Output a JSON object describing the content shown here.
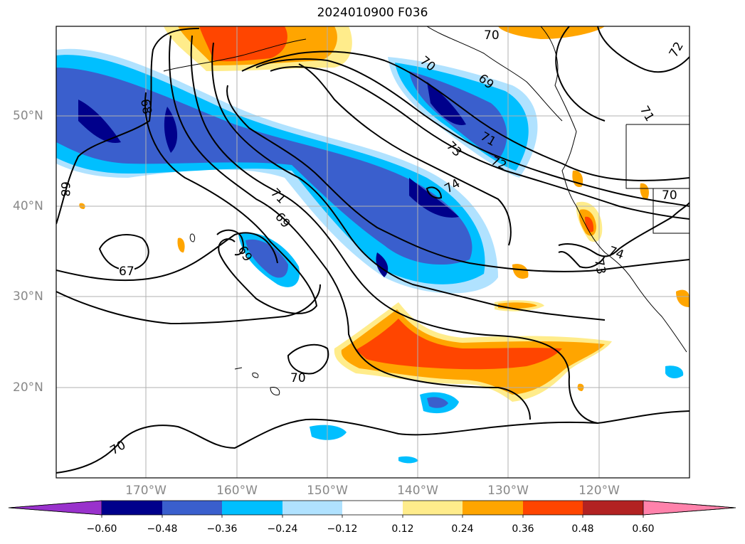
{
  "title": "2024010900 F036",
  "lat_labels": [
    "50°N",
    "40°N",
    "30°N",
    "20°N"
  ],
  "lon_labels": [
    "170°W",
    "160°W",
    "150°W",
    "140°W",
    "130°W",
    "120°W"
  ],
  "contour_labels": [
    "67",
    "68",
    "68",
    "69",
    "69",
    "70",
    "70",
    "70",
    "70",
    "71",
    "71",
    "71",
    "72",
    "72",
    "73",
    "73",
    "74",
    "74",
    "69",
    "70"
  ],
  "colorbar": {
    "ticks": [
      "−0.60",
      "−0.48",
      "−0.36",
      "−0.24",
      "−0.12",
      "0.12",
      "0.24",
      "0.36",
      "0.48",
      "0.60"
    ],
    "colors": [
      "#9932cc",
      "#00008b",
      "#3a5fcd",
      "#00bfff",
      "#b0e2ff",
      "#ffffff",
      "#ffec8b",
      "#ffa500",
      "#ff4500",
      "#b22222",
      "#ff82ab"
    ]
  },
  "palette": {
    "neg_strong": "#00008b",
    "neg_mid": "#3a5fcd",
    "neg_light": "#00bfff",
    "neg_faint": "#b0e2ff",
    "pos_faint": "#ffec8b",
    "pos_light": "#ffa500",
    "pos_mid": "#ff4500",
    "grid": "#b0b0b0"
  }
}
